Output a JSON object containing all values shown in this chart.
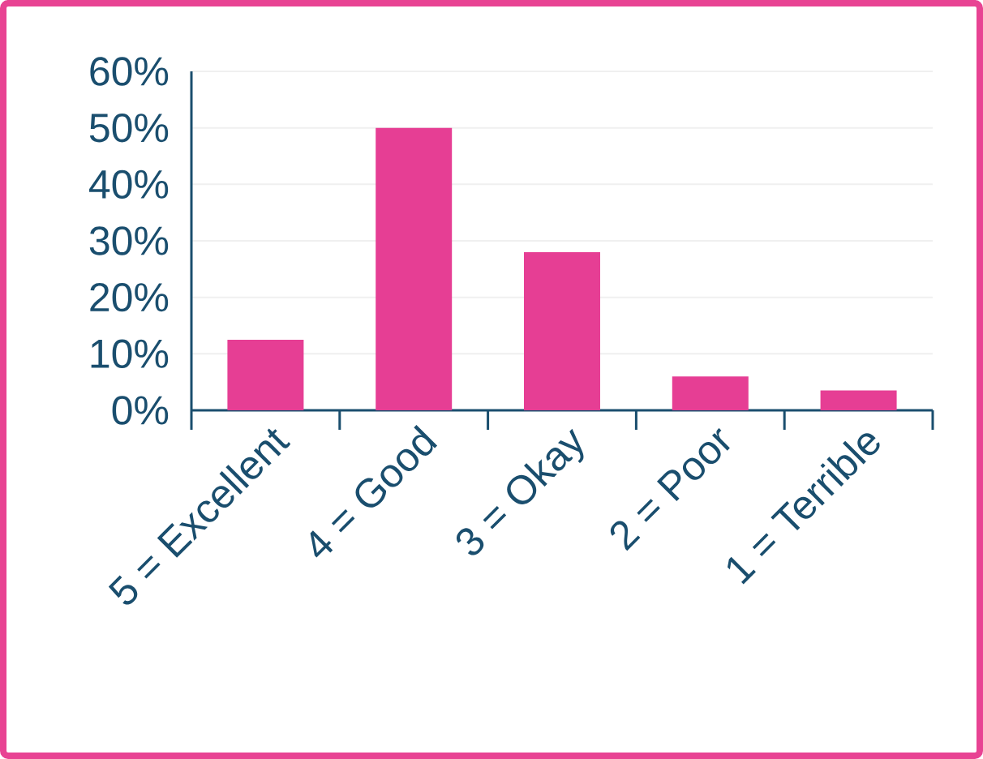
{
  "chart_data": {
    "type": "bar",
    "categories": [
      "5 = Excellent",
      "4 = Good",
      "3 = Okay",
      "2 = Poor",
      "1 = Terrible"
    ],
    "values": [
      12.5,
      50,
      28,
      6,
      3.5
    ],
    "color": "#e63e94",
    "ylim": [
      0,
      60
    ],
    "yticks": [
      {
        "value": 0,
        "label": "0%"
      },
      {
        "value": 10,
        "label": "10%"
      },
      {
        "value": 20,
        "label": "20%"
      },
      {
        "value": 30,
        "label": "30%"
      },
      {
        "value": 40,
        "label": "40%"
      },
      {
        "value": 50,
        "label": "50%"
      },
      {
        "value": 60,
        "label": "60%"
      }
    ],
    "grid": "y"
  }
}
